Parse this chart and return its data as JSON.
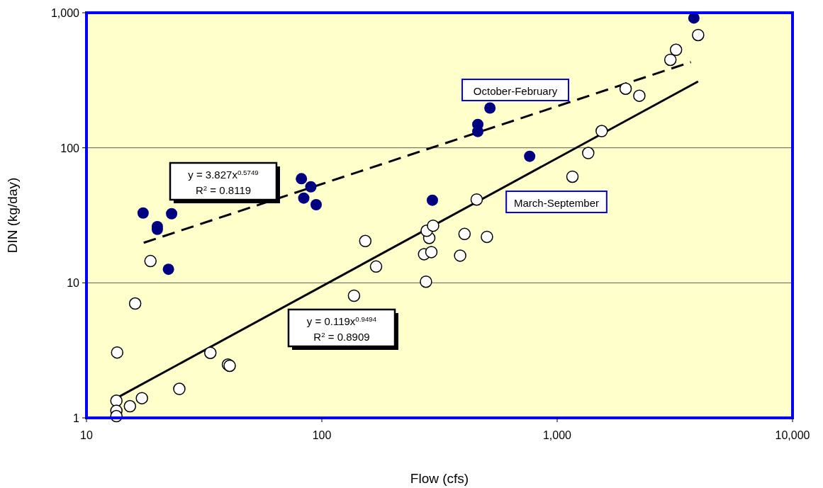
{
  "chart_data": {
    "type": "scatter",
    "xlabel": "Flow (cfs)",
    "ylabel": "DIN (kg/day)",
    "log": "xy",
    "grid": "y",
    "marker": "circle",
    "xlim": [
      10,
      10000
    ],
    "xticks": [
      10,
      100,
      {
        "value": 1000,
        "label": "1,000"
      },
      {
        "value": 10000,
        "label": "10,000"
      }
    ],
    "ylim": [
      1,
      1000
    ],
    "yticks": [
      1,
      10,
      100,
      {
        "value": 1000,
        "label": "1,000"
      }
    ],
    "series": [
      {
        "color": "#000080",
        "x": [
          17.4,
          23.0,
          20.0,
          20.0,
          22.3,
          81.9,
          89.8,
          83.8,
          94.6,
          295,
          460,
          460,
          518,
          764,
          3810
        ],
        "values": [
          32.9,
          32.5,
          26.1,
          24.9,
          12.6,
          59,
          51.4,
          42.4,
          37.9,
          40.9,
          149,
          132,
          197,
          86.5,
          914
        ]
      },
      {
        "color": "#ffffff",
        "x": [
          18.7,
          16.1,
          13.5,
          13.4,
          13.4,
          13.4,
          15.3,
          17.2,
          24.8,
          33.6,
          39.9,
          40.6,
          137,
          153,
          170,
          277,
          272,
          292,
          286,
          279,
          297,
          387,
          404,
          503,
          455,
          1161,
          1355,
          1546,
          1954,
          2234,
          3027,
          3199,
          3971
        ],
        "values": [
          14.5,
          7.03,
          3.05,
          1.34,
          1.13,
          1.03,
          1.22,
          1.4,
          1.64,
          3.03,
          2.48,
          2.43,
          8.03,
          20.4,
          13.2,
          10.2,
          16.3,
          16.9,
          21.5,
          24.3,
          26.5,
          15.9,
          23.0,
          21.9,
          41.4,
          61.1,
          91.5,
          133,
          274,
          243,
          448,
          532,
          684
        ]
      },
      {
        "type": "line",
        "color": "#000000",
        "line_style": "dashed",
        "marker": "none",
        "x": [
          17.5,
          3700
        ],
        "values": [
          19.8,
          431
        ]
      },
      {
        "type": "line",
        "color": "#000000",
        "line_style": "solid",
        "marker": "none",
        "x": [
          13.4,
          3970
        ],
        "values": [
          1.4,
          310
        ]
      }
    ],
    "annotations": [
      "y = 3.827x$^{0.5749}$",
      "R$^{2}$ = 0.8119",
      "y = 0.119x$^{0.9494}$",
      "R$^{2}$ = 0.8909",
      "October-February",
      "March-September"
    ]
  }
}
